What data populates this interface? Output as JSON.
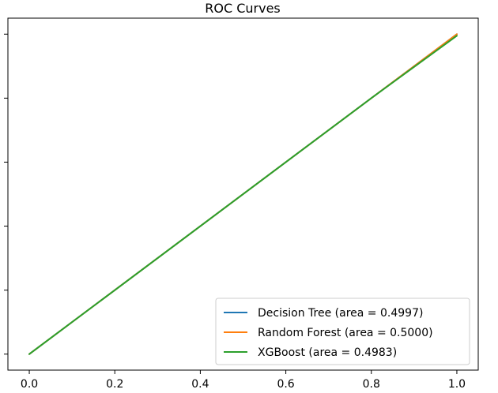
{
  "chart_data": {
    "type": "line",
    "title": "ROC Curves",
    "xlabel": "",
    "ylabel": "",
    "xlim": [
      -0.05,
      1.05
    ],
    "ylim": [
      -0.05,
      1.05
    ],
    "xticks": [
      0.0,
      0.2,
      0.4,
      0.6,
      0.8,
      1.0
    ],
    "xtick_labels": [
      "0.0",
      "0.2",
      "0.4",
      "0.6",
      "0.8",
      "1.0"
    ],
    "yticks": [
      0.0,
      0.2,
      0.4,
      0.6,
      0.8,
      1.0
    ],
    "ytick_labels": [
      "",
      "",
      "",
      "",
      "",
      ""
    ],
    "grid": false,
    "legend_position": "lower-right",
    "series": [
      {
        "name": "Decision Tree (area = 0.4997)",
        "color": "#1f77b4",
        "x": [
          0.0,
          1.0
        ],
        "y": [
          0.0,
          1.0
        ]
      },
      {
        "name": "Random Forest (area = 0.5000)",
        "color": "#ff7f0e",
        "x": [
          0.0,
          1.0
        ],
        "y": [
          0.0,
          1.0
        ]
      },
      {
        "name": "XGBoost (area = 0.4983)",
        "color": "#2ca02c",
        "x": [
          0.0,
          0.2,
          0.4,
          0.6,
          0.8,
          1.0
        ],
        "y": [
          0.0,
          0.2,
          0.4,
          0.6,
          0.8,
          0.995
        ]
      }
    ]
  }
}
